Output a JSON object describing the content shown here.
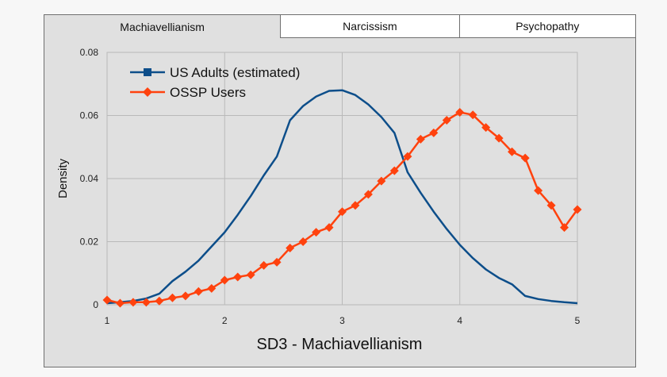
{
  "tabs": [
    {
      "label": "Machiavellianism",
      "active": true
    },
    {
      "label": "Narcissism",
      "active": false
    },
    {
      "label": "Psychopathy",
      "active": false
    }
  ],
  "chart_data": {
    "type": "line",
    "xlabel": "SD3 - Machiavellianism",
    "ylabel": "Density",
    "xlim": [
      1,
      5
    ],
    "ylim": [
      0,
      0.08
    ],
    "x_ticks": [
      1,
      2,
      3,
      4,
      5
    ],
    "y_ticks": [
      0,
      0.02,
      0.04,
      0.06,
      0.08
    ],
    "y_tick_labels": [
      "0",
      "0.02",
      "0.04",
      "0.06",
      "0.08"
    ],
    "grid": true,
    "legend_position": "top-left",
    "series": [
      {
        "name": "US Adults (estimated)",
        "color": "#0d4e8a",
        "marker": "square",
        "x": [
          1.0,
          1.111,
          1.222,
          1.333,
          1.444,
          1.556,
          1.667,
          1.778,
          1.889,
          2.0,
          2.111,
          2.222,
          2.333,
          2.444,
          2.556,
          2.667,
          2.778,
          2.889,
          3.0,
          3.111,
          3.222,
          3.333,
          3.444,
          3.556,
          3.667,
          3.778,
          3.889,
          4.0,
          4.111,
          4.222,
          4.333,
          4.444,
          4.556,
          4.667,
          4.778,
          4.889,
          5.0
        ],
        "y": [
          0.0005,
          0.0008,
          0.0012,
          0.002,
          0.0035,
          0.0075,
          0.0105,
          0.014,
          0.0185,
          0.023,
          0.0285,
          0.0345,
          0.041,
          0.047,
          0.0585,
          0.063,
          0.066,
          0.0678,
          0.068,
          0.0665,
          0.0635,
          0.0595,
          0.0545,
          0.042,
          0.0355,
          0.0295,
          0.024,
          0.019,
          0.0148,
          0.0112,
          0.0085,
          0.0065,
          0.0028,
          0.0018,
          0.0012,
          0.0008,
          0.0005
        ]
      },
      {
        "name": "OSSP Users",
        "color": "#ff420e",
        "marker": "diamond",
        "x": [
          1.0,
          1.111,
          1.222,
          1.333,
          1.444,
          1.556,
          1.667,
          1.778,
          1.889,
          2.0,
          2.111,
          2.222,
          2.333,
          2.444,
          2.556,
          2.667,
          2.778,
          2.889,
          3.0,
          3.111,
          3.222,
          3.333,
          3.444,
          3.556,
          3.667,
          3.778,
          3.889,
          4.0,
          4.111,
          4.222,
          4.333,
          4.444,
          4.556,
          4.667,
          4.778,
          4.889,
          5.0
        ],
        "y": [
          0.0015,
          0.0005,
          0.0008,
          0.0008,
          0.0012,
          0.0022,
          0.0028,
          0.0042,
          0.0052,
          0.0078,
          0.0088,
          0.0095,
          0.0125,
          0.0135,
          0.018,
          0.02,
          0.023,
          0.0245,
          0.0295,
          0.0315,
          0.035,
          0.0392,
          0.0425,
          0.047,
          0.0525,
          0.0545,
          0.0585,
          0.061,
          0.0602,
          0.0562,
          0.0528,
          0.0485,
          0.0465,
          0.0362,
          0.0315,
          0.0245,
          0.0302
        ]
      }
    ]
  }
}
